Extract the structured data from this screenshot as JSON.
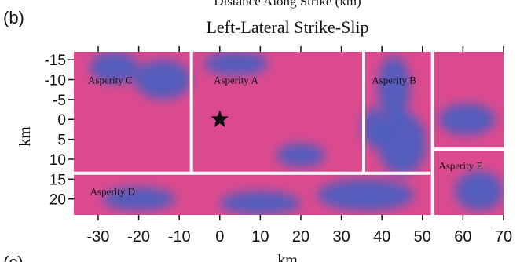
{
  "chart_data": {
    "type": "heatmap",
    "panel_label": "(b)",
    "header_partial": "Distance Along Strike (km)",
    "title": "Left-Lateral Strike-Slip",
    "xlabel": "km",
    "ylabel": "km",
    "xlim": [
      -36,
      70
    ],
    "ylim": [
      -17,
      24
    ],
    "y_inverted": true,
    "x_ticks": [
      -30,
      -20,
      -10,
      0,
      10,
      20,
      30,
      40,
      50,
      60,
      70
    ],
    "y_ticks": [
      -15,
      -10,
      -5,
      0,
      5,
      10,
      15,
      20
    ],
    "next_panel_label_partial": "(c)",
    "colors": {
      "background": "#dc4a8e",
      "slip_low": "#3d5fc4",
      "divider": "#ffffff",
      "epicenter": "#111111"
    },
    "hypocenter": {
      "x": 0,
      "y": 0,
      "symbol": "star"
    },
    "dividers": [
      {
        "x1": -36,
        "y1": 13.5,
        "x2": 52,
        "y2": 13.5
      },
      {
        "x1": -7,
        "y1": -17,
        "x2": -7,
        "y2": 13.5
      },
      {
        "x1": 35.5,
        "y1": -17,
        "x2": 35.5,
        "y2": 13.5
      },
      {
        "x1": 52.5,
        "y1": -17,
        "x2": 52.5,
        "y2": 24
      },
      {
        "x1": 52.5,
        "y1": 7.5,
        "x2": 70,
        "y2": 7.5
      }
    ],
    "asperities": [
      {
        "label": "Asperity C",
        "x": -32.5,
        "y": -10
      },
      {
        "label": "Asperity A",
        "x": -1.5,
        "y": -10
      },
      {
        "label": "Asperity B",
        "x": 37.5,
        "y": -10
      },
      {
        "label": "Asperity E",
        "x": 54,
        "y": 11.5
      },
      {
        "label": "Asperity D",
        "x": -32,
        "y": 18
      }
    ],
    "low_slip_patches": [
      {
        "x": -26,
        "y": -13,
        "rx": 6,
        "ry": 4
      },
      {
        "x": -14,
        "y": -10,
        "rx": 7,
        "ry": 5
      },
      {
        "x": 4,
        "y": -14,
        "rx": 8,
        "ry": 3
      },
      {
        "x": 43,
        "y": -8,
        "rx": 4,
        "ry": 8
      },
      {
        "x": 45,
        "y": 6,
        "rx": 6,
        "ry": 8
      },
      {
        "x": 38,
        "y": 2,
        "rx": 3,
        "ry": 5
      },
      {
        "x": 61,
        "y": 0,
        "rx": 7,
        "ry": 4
      },
      {
        "x": 64,
        "y": 18,
        "rx": 6,
        "ry": 5
      },
      {
        "x": 36,
        "y": 19,
        "rx": 12,
        "ry": 4
      },
      {
        "x": 10,
        "y": 21,
        "rx": 10,
        "ry": 3
      },
      {
        "x": -20,
        "y": 20,
        "rx": 9,
        "ry": 3
      },
      {
        "x": 20,
        "y": 9,
        "rx": 6,
        "ry": 3
      }
    ]
  }
}
